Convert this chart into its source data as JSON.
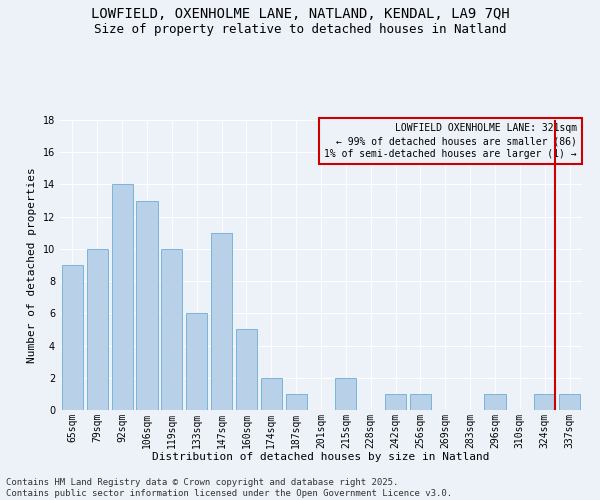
{
  "title": "LOWFIELD, OXENHOLME LANE, NATLAND, KENDAL, LA9 7QH",
  "subtitle": "Size of property relative to detached houses in Natland",
  "xlabel": "Distribution of detached houses by size in Natland",
  "ylabel": "Number of detached properties",
  "categories": [
    "65sqm",
    "79sqm",
    "92sqm",
    "106sqm",
    "119sqm",
    "133sqm",
    "147sqm",
    "160sqm",
    "174sqm",
    "187sqm",
    "201sqm",
    "215sqm",
    "228sqm",
    "242sqm",
    "256sqm",
    "269sqm",
    "283sqm",
    "296sqm",
    "310sqm",
    "324sqm",
    "337sqm"
  ],
  "values": [
    9,
    10,
    14,
    13,
    10,
    6,
    11,
    5,
    2,
    1,
    0,
    2,
    0,
    1,
    1,
    0,
    0,
    1,
    0,
    1,
    1
  ],
  "bar_color": "#b8d0e8",
  "bar_edge_color": "#6aaed6",
  "vline_index": 19,
  "vline_color": "#cc0000",
  "legend_text": "LOWFIELD OXENHOLME LANE: 321sqm\n← 99% of detached houses are smaller (86)\n1% of semi-detached houses are larger (1) →",
  "legend_box_color": "#cc0000",
  "ylim": [
    0,
    18
  ],
  "yticks": [
    0,
    2,
    4,
    6,
    8,
    10,
    12,
    14,
    16,
    18
  ],
  "footer": "Contains HM Land Registry data © Crown copyright and database right 2025.\nContains public sector information licensed under the Open Government Licence v3.0.",
  "bg_color": "#edf2f9",
  "title_fontsize": 10,
  "subtitle_fontsize": 9,
  "axis_label_fontsize": 8,
  "tick_fontsize": 7,
  "legend_fontsize": 7,
  "footer_fontsize": 6.5
}
